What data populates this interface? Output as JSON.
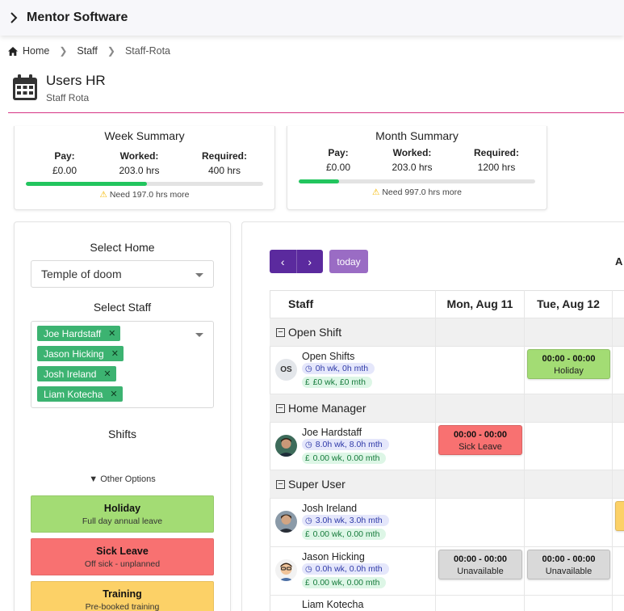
{
  "app": {
    "title": "Mentor Software"
  },
  "breadcrumb": [
    "Home",
    "Staff",
    "Staff-Rota"
  ],
  "page": {
    "title": "Users HR",
    "subtitle": "Staff Rota"
  },
  "week_summary": {
    "title": "Week Summary",
    "pay_label": "Pay:",
    "pay": "£0.00",
    "worked_label": "Worked:",
    "worked": "203.0 hrs",
    "required_label": "Required:",
    "required": "400 hrs",
    "progress": 0.51,
    "note": "Need 197.0 hrs more"
  },
  "month_summary": {
    "title": "Month Summary",
    "pay_label": "Pay:",
    "pay": "£0.00",
    "worked_label": "Worked:",
    "worked": "203.0 hrs",
    "required_label": "Required:",
    "required": "1200 hrs",
    "progress": 0.17,
    "note": "Need 997.0 hrs more"
  },
  "left": {
    "select_home_label": "Select Home",
    "home_value": "Temple of doom",
    "select_staff_label": "Select Staff",
    "staff_chips": [
      "Joe Hardstaff",
      "Jason Hicking",
      "Josh Ireland",
      "Liam Kotecha"
    ],
    "shifts_label": "Shifts",
    "other_options": "Other Options",
    "shift_types": [
      {
        "name": "Holiday",
        "desc": "Full day annual leave",
        "color": "#a3dc74"
      },
      {
        "name": "Sick Leave",
        "desc": "Off sick - unplanned",
        "color": "#f87171"
      },
      {
        "name": "Training",
        "desc": "Pre-booked training",
        "color": "#fcd167"
      }
    ]
  },
  "rota": {
    "today_label": "today",
    "range_label": "A",
    "columns": [
      "Staff",
      "Mon, Aug 11",
      "Tue, Aug 12"
    ],
    "groups": {
      "open_shift": "Open Shift",
      "home_manager": "Home Manager",
      "super_user": "Super User"
    },
    "people": {
      "open": {
        "initials": "OS",
        "name": "Open Shifts",
        "hours": "0h wk, 0h mth",
        "pay": "£0 wk, £0 mth"
      },
      "joe": {
        "name": "Joe Hardstaff",
        "hours": "8.0h wk, 8.0h mth",
        "pay": "0.00 wk, 0.00 mth"
      },
      "josh": {
        "name": "Josh Ireland",
        "hours": "3.0h wk, 3.0h mth",
        "pay": "0.00 wk, 0.00 mth"
      },
      "jason": {
        "name": "Jason Hicking",
        "hours": "0.0h wk, 0.0h mth",
        "pay": "0.00 wk, 0.00 mth"
      },
      "liam": {
        "name": "Liam Kotecha"
      }
    },
    "events": {
      "open_tue": {
        "time": "00:00 - 00:00",
        "label": "Holiday",
        "color": "#a3dc74"
      },
      "joe_mon": {
        "time": "00:00 - 00:00",
        "label": "Sick Leave",
        "color": "#f87171"
      },
      "jason_mon": {
        "time": "00:00 - 00:00",
        "label": "Unavailable",
        "color": "#d9d9d9"
      },
      "jason_tue": {
        "time": "00:00 - 00:00",
        "label": "Unavailable",
        "color": "#d9d9d9"
      }
    }
  },
  "icons": [
    "chevron-right-icon",
    "home-icon",
    "calendar-icon",
    "warning-icon",
    "clock-icon",
    "pound-icon",
    "collapse-icon"
  ]
}
